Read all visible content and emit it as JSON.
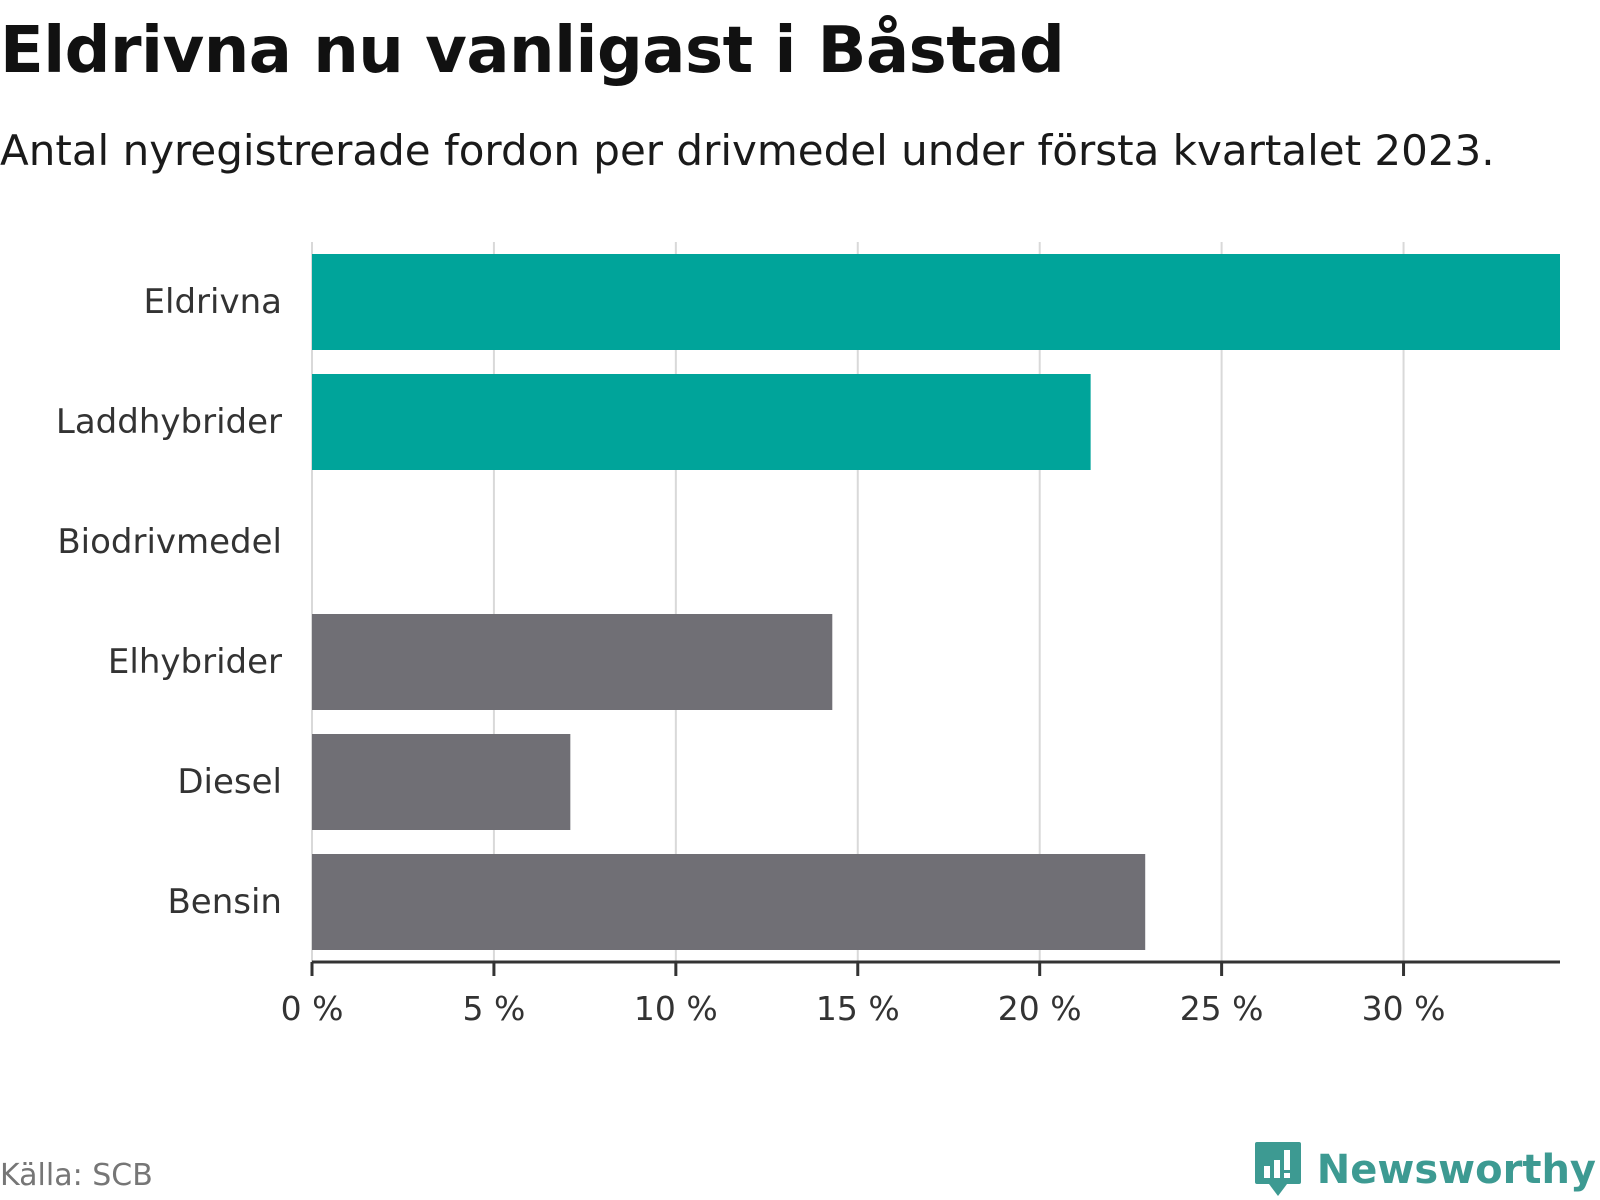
{
  "title": "Eldrivna nu vanligast i Båstad",
  "subtitle": "Antal nyregistrerade fordon per drivmedel under första kvartalet 2023.",
  "source": "Källa: SCB",
  "brand": {
    "name": "Newsworthy",
    "icon": "bar-chart-speech-icon",
    "color": "#3d9a92"
  },
  "chart_data": {
    "type": "bar",
    "orientation": "horizontal",
    "categories": [
      "Eldrivna",
      "Laddhybrider",
      "Biodrivmedel",
      "Elhybrider",
      "Diesel",
      "Bensin"
    ],
    "values": [
      34.3,
      21.4,
      0,
      14.3,
      7.1,
      22.9
    ],
    "colors": [
      "#00a49a",
      "#00a49a",
      "#00a49a",
      "#706f75",
      "#706f75",
      "#706f75"
    ],
    "xlim": [
      0,
      34.3
    ],
    "xticks": [
      0,
      5,
      10,
      15,
      20,
      25,
      30
    ],
    "tick_suffix": " %",
    "grid": true,
    "xlabel": "",
    "ylabel": ""
  }
}
